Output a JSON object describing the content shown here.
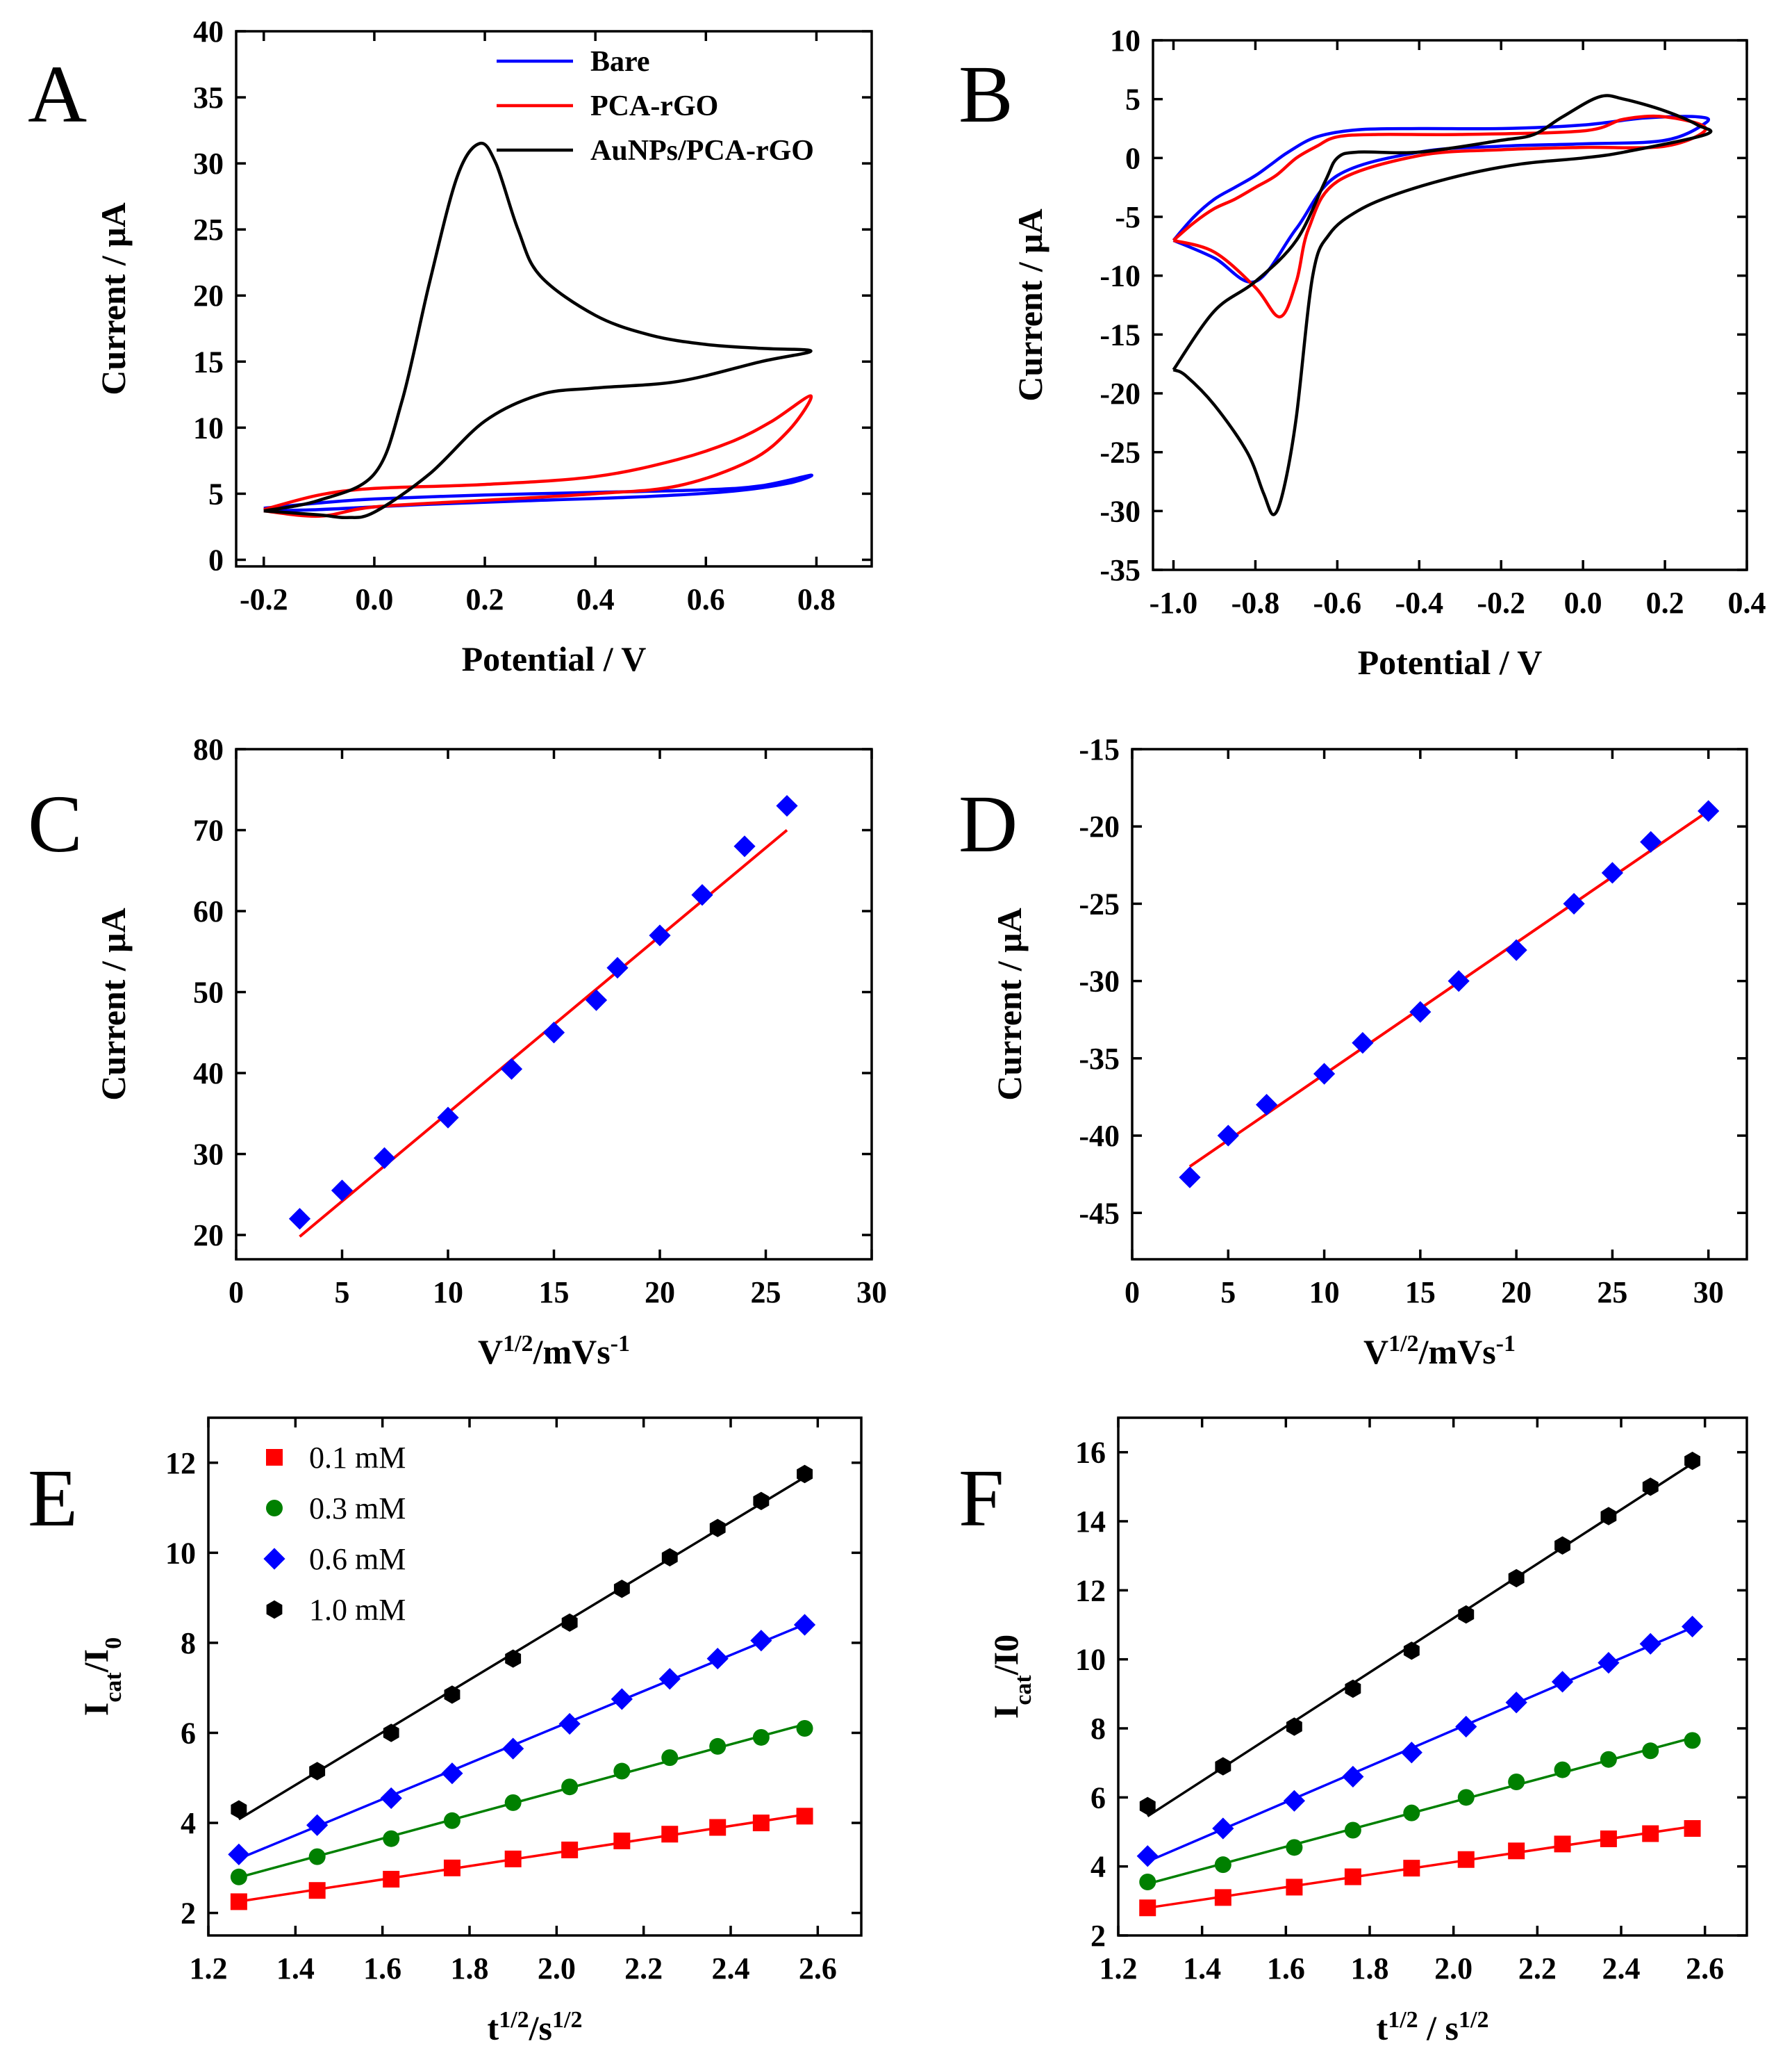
{
  "chart_data": [
    {
      "panel": "A",
      "type": "line",
      "xlabel": "Potential / V",
      "ylabel": "Current / μA",
      "xlim": [
        -0.25,
        0.9
      ],
      "ylim": [
        -0.5,
        40
      ],
      "xticks": [
        "-0.2",
        "0.0",
        "0.2",
        "0.4",
        "0.6",
        "0.8"
      ],
      "yticks": [
        "0",
        "5",
        "10",
        "15",
        "20",
        "25",
        "30",
        "35",
        "40"
      ],
      "legend": {
        "position": "top-right"
      },
      "series": [
        {
          "name": "Bare",
          "color": "#0000ff",
          "x": [
            -0.2,
            -0.1,
            0.0,
            0.2,
            0.4,
            0.6,
            0.7,
            0.79,
            0.75,
            0.65,
            0.5,
            0.3,
            0.1,
            0.0,
            -0.1,
            -0.2
          ],
          "y": [
            3.9,
            4.3,
            4.6,
            4.9,
            5.1,
            5.3,
            5.6,
            6.4,
            5.8,
            5.2,
            4.8,
            4.5,
            4.2,
            4.0,
            3.8,
            3.7
          ]
        },
        {
          "name": "PCA-rGO",
          "color": "#ff0000",
          "x": [
            -0.2,
            -0.1,
            0.0,
            0.2,
            0.4,
            0.55,
            0.65,
            0.72,
            0.79,
            0.75,
            0.68,
            0.55,
            0.4,
            0.2,
            0.0,
            -0.1,
            -0.2
          ],
          "y": [
            3.8,
            4.9,
            5.4,
            5.7,
            6.3,
            7.6,
            9.0,
            10.5,
            12.4,
            9.8,
            7.5,
            5.6,
            5.0,
            4.5,
            4.0,
            3.3,
            3.7
          ]
        },
        {
          "name": "AuNPs/PCA-rGO",
          "color": "#000000",
          "x": [
            -0.2,
            -0.1,
            0.0,
            0.05,
            0.1,
            0.15,
            0.19,
            0.22,
            0.26,
            0.3,
            0.4,
            0.5,
            0.6,
            0.7,
            0.79,
            0.7,
            0.55,
            0.4,
            0.3,
            0.2,
            0.1,
            0.0,
            -0.05,
            -0.1,
            -0.2
          ],
          "y": [
            3.7,
            4.5,
            6.5,
            12.0,
            21.0,
            29.0,
            31.5,
            30.0,
            25.0,
            21.5,
            18.5,
            17.0,
            16.3,
            16.0,
            15.8,
            15.0,
            13.5,
            13.0,
            12.5,
            10.5,
            6.5,
            3.6,
            3.2,
            3.4,
            3.7
          ]
        }
      ]
    },
    {
      "panel": "B",
      "type": "line",
      "xlabel": "Potential / V",
      "ylabel": "Current / μA",
      "xlim": [
        -1.05,
        0.4
      ],
      "ylim": [
        -35,
        10
      ],
      "xticks": [
        "-1.0",
        "-0.8",
        "-0.6",
        "-0.4",
        "-0.2",
        "0.0",
        "0.2",
        "0.4"
      ],
      "yticks": [
        "-35",
        "-30",
        "-25",
        "-20",
        "-15",
        "-10",
        "-5",
        "0",
        "5",
        "10"
      ],
      "series": [
        {
          "name": "Bare",
          "color": "#0000ff",
          "x": [
            -1.0,
            -0.95,
            -0.9,
            -0.85,
            -0.8,
            -0.76,
            -0.72,
            -0.65,
            -0.55,
            -0.4,
            -0.2,
            0.0,
            0.15,
            0.28,
            0.3,
            0.2,
            0.0,
            -0.2,
            -0.4,
            -0.6,
            -0.7,
            -0.8,
            -0.9,
            -1.0
          ],
          "y": [
            -7.0,
            -5.0,
            -3.5,
            -2.5,
            -1.5,
            -0.5,
            0.5,
            1.8,
            2.4,
            2.5,
            2.5,
            2.8,
            3.4,
            3.5,
            3.0,
            1.5,
            1.2,
            1.0,
            0.5,
            -1.5,
            -6.0,
            -10.5,
            -8.5,
            -7.0
          ]
        },
        {
          "name": "PCA-rGO",
          "color": "#ff0000",
          "x": [
            -1.0,
            -0.95,
            -0.9,
            -0.85,
            -0.8,
            -0.75,
            -0.7,
            -0.65,
            -0.6,
            -0.5,
            -0.3,
            0.0,
            0.1,
            0.2,
            0.3,
            0.2,
            0.0,
            -0.2,
            -0.4,
            -0.6,
            -0.67,
            -0.7,
            -0.74,
            -0.8,
            -0.9,
            -1.0
          ],
          "y": [
            -7.0,
            -5.5,
            -4.3,
            -3.5,
            -2.5,
            -1.5,
            0.0,
            1.0,
            1.8,
            2.0,
            2.0,
            2.3,
            3.3,
            3.5,
            2.5,
            1.0,
            0.9,
            0.7,
            0.2,
            -2.0,
            -6.0,
            -10.5,
            -13.5,
            -11.0,
            -8.0,
            -7.0
          ]
        },
        {
          "name": "AuNPs/PCA-rGO",
          "color": "#000000",
          "x": [
            -1.0,
            -0.97,
            -0.9,
            -0.82,
            -0.78,
            -0.755,
            -0.73,
            -0.7,
            -0.66,
            -0.62,
            -0.55,
            -0.45,
            -0.3,
            -0.15,
            0.0,
            0.1,
            0.3,
            0.28,
            0.2,
            0.1,
            0.04,
            -0.05,
            -0.12,
            -0.2,
            -0.4,
            -0.55,
            -0.6,
            -0.63,
            -0.7,
            -0.8,
            -0.9,
            -1.0
          ],
          "y": [
            -18.0,
            -18.5,
            -21.0,
            -25.0,
            -28.5,
            -30.3,
            -28.0,
            -22.0,
            -10.0,
            -6.5,
            -4.5,
            -3.0,
            -1.5,
            -0.5,
            0.0,
            0.5,
            2.0,
            2.8,
            4.0,
            5.0,
            5.2,
            3.5,
            2.0,
            1.5,
            0.5,
            0.5,
            0.0,
            -2.0,
            -7.0,
            -10.5,
            -13.0,
            -18.0
          ]
        }
      ]
    },
    {
      "panel": "C",
      "type": "scatter",
      "xlabel": "V",
      "xlabel_sup": "1/2",
      "xlabel_rest": "/mVs",
      "xlabel_sup2": "-1",
      "ylabel": "Current / μA",
      "xlim": [
        0,
        30
      ],
      "ylim": [
        17,
        80
      ],
      "xticks": [
        "0",
        "5",
        "10",
        "15",
        "20",
        "25",
        "30"
      ],
      "yticks": [
        "20",
        "30",
        "40",
        "50",
        "60",
        "70",
        "80"
      ],
      "series": [
        {
          "name": "data",
          "color": "#0000ff",
          "marker": "diamond",
          "x": [
            3,
            5,
            7,
            10,
            13,
            15,
            17,
            18,
            20,
            22,
            24,
            26
          ],
          "y": [
            22.0,
            25.5,
            29.5,
            34.5,
            40.5,
            45.0,
            49.0,
            53.0,
            57.0,
            62.0,
            68.0,
            73.0
          ]
        }
      ],
      "fit": {
        "color": "#ff0000",
        "x": [
          3,
          26
        ],
        "y": [
          19.8,
          70.0
        ]
      }
    },
    {
      "panel": "D",
      "type": "scatter",
      "xlabel": "V",
      "xlabel_sup": "1/2",
      "xlabel_rest": "/mVs",
      "xlabel_sup2": "-1",
      "ylabel": "Current / μA",
      "xlim": [
        0,
        32
      ],
      "ylim": [
        -48,
        -15
      ],
      "xticks": [
        "0",
        "5",
        "10",
        "15",
        "20",
        "25",
        "30"
      ],
      "yticks": [
        "-45",
        "-40",
        "-35",
        "-30",
        "-25",
        "-20",
        "-15"
      ],
      "series": [
        {
          "name": "data",
          "color": "#0000ff",
          "marker": "diamond",
          "x": [
            3,
            5,
            7,
            10,
            12,
            15,
            17,
            20,
            23,
            25,
            27,
            30
          ],
          "y": [
            -42.7,
            -40.0,
            -38.0,
            -36.0,
            -34.0,
            -32.0,
            -30.0,
            -28.0,
            -25.0,
            -23.0,
            -21.0,
            -19.0
          ]
        }
      ],
      "fit": {
        "color": "#ff0000",
        "x": [
          3,
          30
        ],
        "y": [
          -42.0,
          -19.0
        ]
      }
    },
    {
      "panel": "E",
      "type": "scatter",
      "xlabel": "t",
      "xlabel_sup": "1/2",
      "xlabel_rest": "/s",
      "xlabel_sup2": "1/2",
      "ylabel": "I",
      "ylabel_sub": "cat",
      "ylabel_rest": "/I",
      "ylabel_sub2": "0",
      "xlim": [
        1.2,
        2.7
      ],
      "ylim": [
        1.5,
        13.0
      ],
      "xticks": [
        "1.2",
        "1.4",
        "1.6",
        "1.8",
        "2.0",
        "2.2",
        "2.4",
        "2.6"
      ],
      "yticks": [
        "2",
        "4",
        "6",
        "8",
        "10",
        "12"
      ],
      "legend": {
        "position": "top-left"
      },
      "x": [
        1.27,
        1.45,
        1.62,
        1.76,
        1.9,
        2.03,
        2.15,
        2.26,
        2.37,
        2.47,
        2.57
      ],
      "series": [
        {
          "name": "0.1 mM",
          "color": "#ff0000",
          "marker": "square",
          "y": [
            2.25,
            2.5,
            2.75,
            3.0,
            3.2,
            3.4,
            3.6,
            3.75,
            3.9,
            4.0,
            4.15
          ]
        },
        {
          "name": "0.3 mM",
          "color": "#008000",
          "marker": "circle",
          "y": [
            2.8,
            3.25,
            3.65,
            4.05,
            4.45,
            4.8,
            5.15,
            5.45,
            5.7,
            5.9,
            6.1
          ]
        },
        {
          "name": "0.6 mM",
          "color": "#0000ff",
          "marker": "diamond",
          "y": [
            3.3,
            3.95,
            4.55,
            5.1,
            5.65,
            6.2,
            6.75,
            7.2,
            7.65,
            8.05,
            8.4
          ]
        },
        {
          "name": "1.0 mM",
          "color": "#000000",
          "marker": "hexagon",
          "y": [
            4.3,
            5.15,
            6.0,
            6.85,
            7.65,
            8.45,
            9.2,
            9.9,
            10.55,
            11.15,
            11.75
          ]
        }
      ]
    },
    {
      "panel": "F",
      "type": "scatter",
      "xlabel": "t",
      "xlabel_sup": "1/2",
      "xlabel_rest": " / s",
      "xlabel_sup2": "1/2",
      "ylabel": "I",
      "ylabel_sub": "cat",
      "ylabel_rest": "/I0",
      "ylabel_sub2": "",
      "xlim": [
        1.2,
        2.7
      ],
      "ylim": [
        2,
        17
      ],
      "xticks": [
        "1.2",
        "1.4",
        "1.6",
        "1.8",
        "2.0",
        "2.2",
        "2.4",
        "2.6"
      ],
      "yticks": [
        "2",
        "4",
        "6",
        "8",
        "10",
        "12",
        "14",
        "16"
      ],
      "x": [
        1.27,
        1.45,
        1.62,
        1.76,
        1.9,
        2.03,
        2.15,
        2.26,
        2.37,
        2.47,
        2.57
      ],
      "series": [
        {
          "name": "0.1 mM",
          "color": "#ff0000",
          "marker": "square",
          "y": [
            2.8,
            3.1,
            3.4,
            3.7,
            3.95,
            4.2,
            4.45,
            4.65,
            4.8,
            4.95,
            5.1
          ]
        },
        {
          "name": "0.3 mM",
          "color": "#008000",
          "marker": "circle",
          "y": [
            3.55,
            4.05,
            4.55,
            5.05,
            5.55,
            6.0,
            6.45,
            6.8,
            7.1,
            7.35,
            7.65
          ]
        },
        {
          "name": "0.6 mM",
          "color": "#0000ff",
          "marker": "diamond",
          "y": [
            4.3,
            5.1,
            5.9,
            6.6,
            7.3,
            8.05,
            8.75,
            9.35,
            9.9,
            10.45,
            10.95
          ]
        },
        {
          "name": "1.0 mM",
          "color": "#000000",
          "marker": "hexagon",
          "y": [
            5.75,
            6.9,
            8.05,
            9.15,
            10.25,
            11.3,
            12.35,
            13.3,
            14.15,
            15.0,
            15.75
          ]
        }
      ]
    }
  ]
}
